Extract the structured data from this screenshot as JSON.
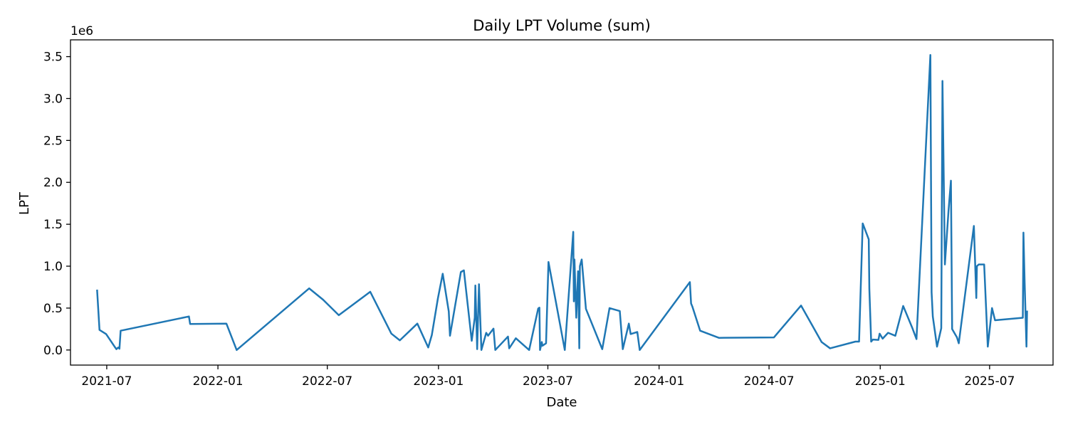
{
  "chart_data": {
    "type": "line",
    "title": "Daily LPT Volume (sum)",
    "xlabel": "Date",
    "ylabel": "LPT",
    "y_offset_label": "1e6",
    "y_multiplier": 1000000,
    "grid": false,
    "line_color": "#1f77b4",
    "xlim": [
      "2021-05-02",
      "2025-10-14"
    ],
    "ylim": [
      -180000,
      3700000
    ],
    "x_ticks": [
      {
        "date": "2021-07-01",
        "label": "2021-07"
      },
      {
        "date": "2022-01-01",
        "label": "2022-01"
      },
      {
        "date": "2022-07-01",
        "label": "2022-07"
      },
      {
        "date": "2023-01-01",
        "label": "2023-01"
      },
      {
        "date": "2023-07-01",
        "label": "2023-07"
      },
      {
        "date": "2024-01-01",
        "label": "2024-01"
      },
      {
        "date": "2024-07-01",
        "label": "2024-07"
      },
      {
        "date": "2025-01-01",
        "label": "2025-01"
      },
      {
        "date": "2025-07-01",
        "label": "2025-07"
      }
    ],
    "y_ticks": [
      {
        "value": 0,
        "label": "0.0"
      },
      {
        "value": 500000,
        "label": "0.5"
      },
      {
        "value": 1000000,
        "label": "1.0"
      },
      {
        "value": 1500000,
        "label": "1.5"
      },
      {
        "value": 2000000,
        "label": "2.0"
      },
      {
        "value": 2500000,
        "label": "2.5"
      },
      {
        "value": 3000000,
        "label": "3.0"
      },
      {
        "value": 3500000,
        "label": "3.5"
      }
    ],
    "series": [
      {
        "points": [
          [
            "2021-06-15",
            720000
          ],
          [
            "2021-06-19",
            240000
          ],
          [
            "2021-06-30",
            190000
          ],
          [
            "2021-07-14",
            40000
          ],
          [
            "2021-07-17",
            10000
          ],
          [
            "2021-07-20",
            30000
          ],
          [
            "2021-07-22",
            15000
          ],
          [
            "2021-07-24",
            230000
          ],
          [
            "2021-11-14",
            400000
          ],
          [
            "2021-11-16",
            310000
          ],
          [
            "2022-01-15",
            315000
          ],
          [
            "2022-02-01",
            0
          ],
          [
            "2022-06-01",
            735000
          ],
          [
            "2022-06-24",
            600000
          ],
          [
            "2022-07-20",
            415000
          ],
          [
            "2022-09-10",
            695000
          ],
          [
            "2022-10-15",
            195000
          ],
          [
            "2022-10-29",
            115000
          ],
          [
            "2022-11-27",
            315000
          ],
          [
            "2022-12-15",
            30000
          ],
          [
            "2022-12-21",
            180000
          ],
          [
            "2022-12-31",
            615000
          ],
          [
            "2023-01-08",
            910000
          ],
          [
            "2023-01-18",
            460000
          ],
          [
            "2023-01-20",
            170000
          ],
          [
            "2023-02-07",
            930000
          ],
          [
            "2023-02-12",
            950000
          ],
          [
            "2023-02-25",
            110000
          ],
          [
            "2023-03-02",
            385000
          ],
          [
            "2023-03-03",
            770000
          ],
          [
            "2023-03-06",
            10000
          ],
          [
            "2023-03-09",
            785000
          ],
          [
            "2023-03-13",
            0
          ],
          [
            "2023-03-21",
            205000
          ],
          [
            "2023-03-24",
            170000
          ],
          [
            "2023-04-02",
            255000
          ],
          [
            "2023-04-05",
            0
          ],
          [
            "2023-04-26",
            160000
          ],
          [
            "2023-04-28",
            20000
          ],
          [
            "2023-05-09",
            140000
          ],
          [
            "2023-05-31",
            0
          ],
          [
            "2023-06-15",
            495000
          ],
          [
            "2023-06-17",
            505000
          ],
          [
            "2023-06-18",
            0
          ],
          [
            "2023-06-21",
            95000
          ],
          [
            "2023-06-22",
            50000
          ],
          [
            "2023-06-28",
            80000
          ],
          [
            "2023-07-02",
            1050000
          ],
          [
            "2023-07-24",
            195000
          ],
          [
            "2023-07-29",
            0
          ],
          [
            "2023-08-12",
            1410000
          ],
          [
            "2023-08-13",
            580000
          ],
          [
            "2023-08-14",
            1080000
          ],
          [
            "2023-08-17",
            385000
          ],
          [
            "2023-08-20",
            940000
          ],
          [
            "2023-08-22",
            20000
          ],
          [
            "2023-08-23",
            1000000
          ],
          [
            "2023-08-26",
            1080000
          ],
          [
            "2023-09-02",
            490000
          ],
          [
            "2023-09-29",
            10000
          ],
          [
            "2023-10-11",
            500000
          ],
          [
            "2023-10-28",
            465000
          ],
          [
            "2023-11-02",
            10000
          ],
          [
            "2023-11-12",
            315000
          ],
          [
            "2023-11-15",
            190000
          ],
          [
            "2023-11-26",
            215000
          ],
          [
            "2023-11-30",
            0
          ],
          [
            "2024-02-21",
            810000
          ],
          [
            "2024-02-23",
            555000
          ],
          [
            "2024-02-25",
            520000
          ],
          [
            "2024-03-09",
            230000
          ],
          [
            "2024-04-09",
            145000
          ],
          [
            "2024-07-09",
            150000
          ],
          [
            "2024-08-23",
            530000
          ],
          [
            "2024-09-26",
            95000
          ],
          [
            "2024-10-10",
            20000
          ],
          [
            "2024-11-21",
            100000
          ],
          [
            "2024-11-27",
            100000
          ],
          [
            "2024-12-03",
            1510000
          ],
          [
            "2024-12-13",
            1320000
          ],
          [
            "2024-12-14",
            730000
          ],
          [
            "2024-12-17",
            100000
          ],
          [
            "2024-12-20",
            125000
          ],
          [
            "2024-12-29",
            120000
          ],
          [
            "2024-12-31",
            195000
          ],
          [
            "2025-01-05",
            135000
          ],
          [
            "2025-01-14",
            205000
          ],
          [
            "2025-01-26",
            170000
          ],
          [
            "2025-02-08",
            525000
          ],
          [
            "2025-02-23",
            265000
          ],
          [
            "2025-03-02",
            130000
          ],
          [
            "2025-03-25",
            3520000
          ],
          [
            "2025-03-27",
            690000
          ],
          [
            "2025-03-29",
            400000
          ],
          [
            "2025-04-05",
            40000
          ],
          [
            "2025-04-12",
            260000
          ],
          [
            "2025-04-14",
            3210000
          ],
          [
            "2025-04-18",
            1020000
          ],
          [
            "2025-04-24",
            1660000
          ],
          [
            "2025-04-28",
            2020000
          ],
          [
            "2025-04-30",
            250000
          ],
          [
            "2025-05-08",
            150000
          ],
          [
            "2025-05-11",
            80000
          ],
          [
            "2025-06-05",
            1480000
          ],
          [
            "2025-06-09",
            620000
          ],
          [
            "2025-06-10",
            1000000
          ],
          [
            "2025-06-13",
            1020000
          ],
          [
            "2025-06-22",
            1020000
          ],
          [
            "2025-06-28",
            40000
          ],
          [
            "2025-07-05",
            500000
          ],
          [
            "2025-07-10",
            355000
          ],
          [
            "2025-08-25",
            385000
          ],
          [
            "2025-08-26",
            1400000
          ],
          [
            "2025-08-28",
            800000
          ],
          [
            "2025-08-31",
            40000
          ],
          [
            "2025-09-01",
            470000
          ]
        ]
      }
    ]
  }
}
